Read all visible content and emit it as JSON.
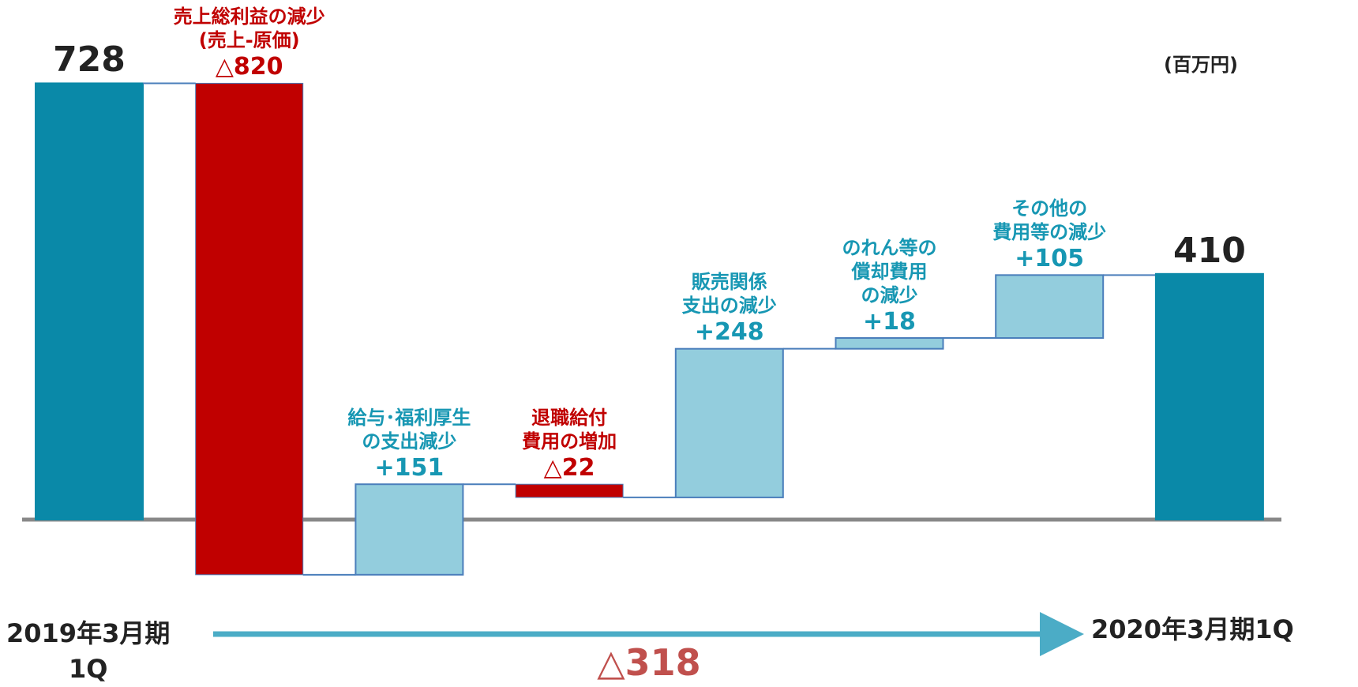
{
  "chart_data": {
    "type": "waterfall",
    "categories": [
      "2019年3月期\n1Q",
      "売上総利益の減少\n(売上-原価)",
      "給与･福利厚生\nの支出減少",
      "退職給付\n費用の増加",
      "販売関係\n支出の減少",
      "のれん等の\n償却費用\nの減少",
      "その他の\n費用等の減少",
      "2020年3月期1Q"
    ],
    "values": [
      728,
      -820,
      151,
      -22,
      248,
      18,
      105,
      410
    ],
    "value_labels": [
      "728",
      "△820",
      "+151",
      "△22",
      "+248",
      "+18",
      "+105",
      "410"
    ],
    "measure": [
      "absolute",
      "relative",
      "relative",
      "relative",
      "relative",
      "relative",
      "relative",
      "total"
    ],
    "colors": {
      "total": "#0a89a8",
      "increase": "#93cddd",
      "decrease": "#c00000"
    },
    "unit_label": "(百万円)",
    "change_label": "△318"
  }
}
